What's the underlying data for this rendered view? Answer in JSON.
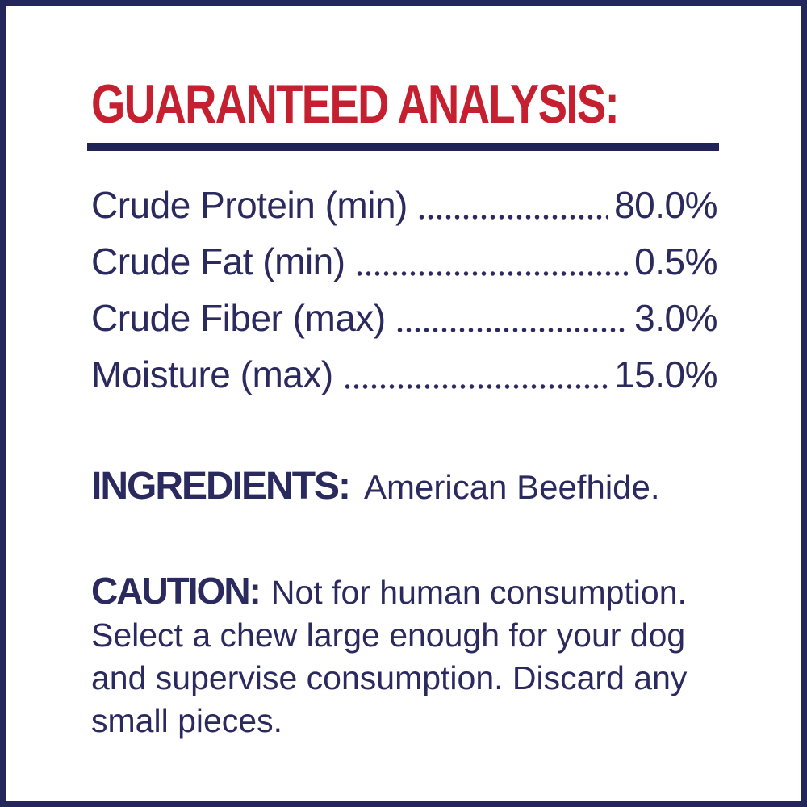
{
  "panel": {
    "title": "GUARANTEED ANALYSIS:"
  },
  "analysis": {
    "rows": [
      {
        "label": "Crude Protein (min)",
        "value": "80.0%"
      },
      {
        "label": "Crude Fat (min)",
        "value": "0.5%"
      },
      {
        "label": "Crude Fiber (max)",
        "value": "3.0%"
      },
      {
        "label": "Moisture (max)",
        "value": "15.0%"
      }
    ]
  },
  "ingredients": {
    "label": "INGREDIENTS:",
    "value": "American Beefhide."
  },
  "caution": {
    "label": "CAUTION:",
    "text": "Not for human consumption. Select a chew large enough for your dog and supervise consumption. Discard any small pieces."
  },
  "colors": {
    "red": "#c5202f",
    "navy": "#2b2a5e",
    "border_navy": "#23265a",
    "rule_navy": "#1f2356"
  }
}
